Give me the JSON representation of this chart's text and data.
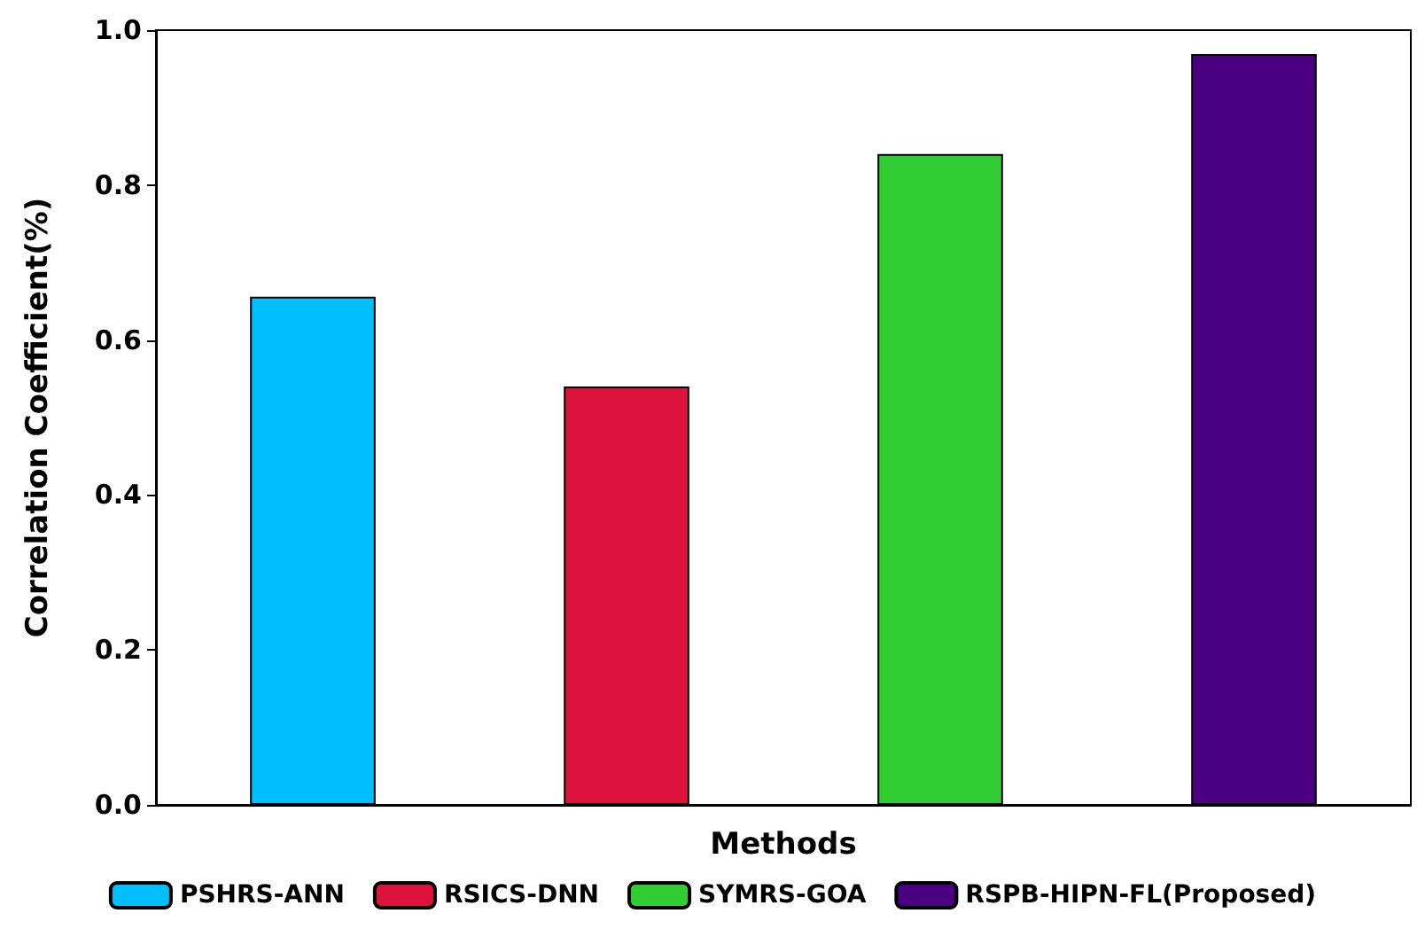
{
  "chart_data": {
    "type": "bar",
    "xlabel": "Methods",
    "ylabel": "Correlation Coefficient(%)",
    "categories": [
      null,
      null,
      null,
      null
    ],
    "series": [
      {
        "name": "PSHRS-ANN",
        "color": "#00bfff",
        "values": [
          0.656,
          null,
          null,
          null
        ]
      },
      {
        "name": "RSICS-DNN",
        "color": "#dc143c",
        "values": [
          null,
          0.54,
          null,
          null
        ]
      },
      {
        "name": "SYMRS-GOA",
        "color": "#32cd32",
        "values": [
          null,
          null,
          0.84,
          null
        ]
      },
      {
        "name": "RSPB-HIPN-FL(Proposed)",
        "color": "#4b0082",
        "values": [
          null,
          null,
          null,
          0.969
        ]
      }
    ],
    "ylim": [
      0,
      1
    ],
    "yticks": [
      {
        "value": 0,
        "label": "0.0"
      },
      {
        "value": 0.2,
        "label": "0.2"
      },
      {
        "value": 0.4,
        "label": "0.4"
      },
      {
        "value": 0.6,
        "label": "0.6"
      },
      {
        "value": 0.8,
        "label": "0.8"
      },
      {
        "value": 1,
        "label": "1.0"
      }
    ],
    "grid": false,
    "legend": "bottom"
  }
}
